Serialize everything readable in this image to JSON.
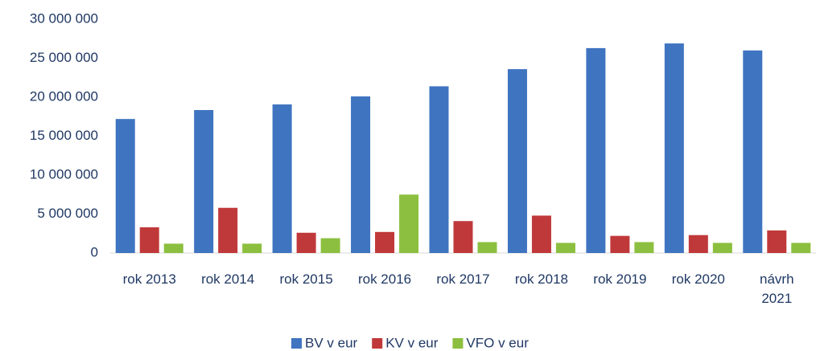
{
  "chart_data": {
    "type": "bar",
    "categories": [
      "rok 2013",
      "rok 2014",
      "rok 2015",
      "rok 2016",
      "rok 2017",
      "rok 2018",
      "rok 2019",
      "rok 2020",
      "návrh 2021"
    ],
    "series": [
      {
        "name": "BV v eur",
        "color": "#3f74c0",
        "values": [
          17200000,
          18350000,
          19070000,
          20100000,
          21400000,
          23600000,
          26300000,
          26900000,
          26000000
        ]
      },
      {
        "name": "KV v eur",
        "color": "#c0393a",
        "values": [
          3300000,
          5800000,
          2600000,
          2700000,
          4100000,
          4800000,
          2200000,
          2300000,
          2900000
        ]
      },
      {
        "name": "VFO v eur",
        "color": "#8cbf3f",
        "values": [
          1200000,
          1200000,
          1900000,
          7500000,
          1400000,
          1300000,
          1400000,
          1300000,
          1300000
        ]
      }
    ],
    "ylim": [
      0,
      30000000
    ],
    "yticks": [
      {
        "value": 0,
        "label": "0"
      },
      {
        "value": 5000000,
        "label": "5 000 000"
      },
      {
        "value": 10000000,
        "label": "10 000 000"
      },
      {
        "value": 15000000,
        "label": "15 000 000"
      },
      {
        "value": 20000000,
        "label": "20 000 000"
      },
      {
        "value": 25000000,
        "label": "25 000 000"
      },
      {
        "value": 30000000,
        "label": "30 000 000"
      }
    ],
    "grid": false,
    "legend": "bottom"
  }
}
